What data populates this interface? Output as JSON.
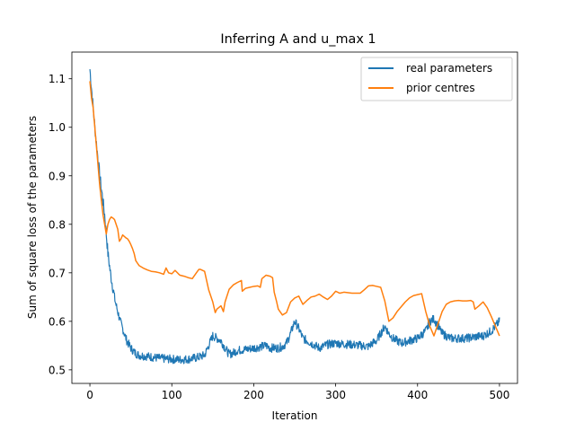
{
  "chart_data": {
    "type": "line",
    "title": "Inferring A and u_max 1",
    "xlabel": "Iteration",
    "ylabel": "Sum of square loss of the parameters",
    "xlim": [
      -22,
      522
    ],
    "ylim": [
      0.472,
      1.155
    ],
    "xticks": [
      0,
      100,
      200,
      300,
      400,
      500
    ],
    "yticks": [
      0.5,
      0.6,
      0.7,
      0.8,
      0.9,
      1.0,
      1.1
    ],
    "ytick_labels": [
      "0.5",
      "0.6",
      "0.7",
      "0.8",
      "0.9",
      "1.0",
      "1.1"
    ],
    "grid": false,
    "legend": "top-right",
    "series": [
      {
        "name": "real parameters",
        "color": "#1f77b4",
        "style": "noisy",
        "x": [
          0,
          3,
          6,
          9,
          12,
          15,
          18,
          20,
          22,
          25,
          28,
          31,
          34,
          37,
          40,
          45,
          50,
          55,
          60,
          70,
          80,
          90,
          100,
          110,
          120,
          130,
          140,
          145,
          150,
          155,
          160,
          165,
          170,
          175,
          180,
          190,
          200,
          210,
          215,
          220,
          225,
          230,
          235,
          240,
          245,
          250,
          255,
          260,
          270,
          280,
          290,
          300,
          310,
          320,
          330,
          340,
          345,
          350,
          355,
          360,
          365,
          370,
          380,
          390,
          400,
          410,
          415,
          420,
          425,
          430,
          440,
          450,
          460,
          470,
          480,
          490,
          500
        ],
        "values": [
          1.12,
          1.06,
          1.0,
          0.95,
          0.9,
          0.86,
          0.82,
          0.78,
          0.74,
          0.7,
          0.67,
          0.64,
          0.62,
          0.6,
          0.585,
          0.56,
          0.545,
          0.535,
          0.53,
          0.528,
          0.525,
          0.523,
          0.522,
          0.521,
          0.522,
          0.525,
          0.53,
          0.55,
          0.57,
          0.565,
          0.56,
          0.545,
          0.532,
          0.535,
          0.54,
          0.542,
          0.545,
          0.548,
          0.55,
          0.545,
          0.545,
          0.545,
          0.548,
          0.555,
          0.575,
          0.6,
          0.585,
          0.565,
          0.555,
          0.545,
          0.552,
          0.555,
          0.553,
          0.552,
          0.55,
          0.548,
          0.555,
          0.56,
          0.575,
          0.59,
          0.575,
          0.565,
          0.555,
          0.56,
          0.565,
          0.58,
          0.6,
          0.605,
          0.59,
          0.575,
          0.565,
          0.565,
          0.565,
          0.568,
          0.57,
          0.58,
          0.6
        ]
      },
      {
        "name": "prior centres",
        "color": "#ff7f0e",
        "style": "line",
        "x": [
          0,
          2,
          4,
          6,
          8,
          10,
          12,
          14,
          16,
          18,
          20,
          22,
          24,
          26,
          28,
          30,
          32,
          34,
          36,
          38,
          40,
          42,
          44,
          46,
          48,
          50,
          52,
          54,
          56,
          58,
          60,
          63,
          66,
          70,
          75,
          80,
          85,
          90,
          93,
          96,
          100,
          104,
          108,
          110,
          115,
          120,
          125,
          130,
          133,
          135,
          140,
          145,
          150,
          153,
          155,
          160,
          163,
          165,
          170,
          175,
          180,
          185,
          186,
          190,
          195,
          200,
          205,
          208,
          210,
          215,
          220,
          223,
          225,
          228,
          230,
          235,
          240,
          245,
          250,
          255,
          257,
          260,
          265,
          270,
          275,
          280,
          285,
          290,
          295,
          300,
          305,
          310,
          320,
          330,
          335,
          340,
          345,
          350,
          355,
          360,
          365,
          370,
          375,
          380,
          385,
          390,
          395,
          400,
          405,
          410,
          415,
          420,
          425,
          430,
          435,
          440,
          445,
          450,
          455,
          460,
          465,
          468,
          470,
          475,
          480,
          485,
          490,
          495,
          500
        ],
        "values": [
          1.095,
          1.06,
          1.04,
          1.0,
          0.96,
          0.92,
          0.88,
          0.85,
          0.82,
          0.8,
          0.78,
          0.8,
          0.81,
          0.815,
          0.813,
          0.81,
          0.8,
          0.79,
          0.765,
          0.77,
          0.778,
          0.775,
          0.772,
          0.77,
          0.765,
          0.758,
          0.75,
          0.74,
          0.725,
          0.72,
          0.715,
          0.712,
          0.709,
          0.706,
          0.703,
          0.702,
          0.7,
          0.697,
          0.71,
          0.7,
          0.698,
          0.705,
          0.698,
          0.695,
          0.693,
          0.69,
          0.688,
          0.7,
          0.707,
          0.707,
          0.703,
          0.665,
          0.64,
          0.618,
          0.625,
          0.632,
          0.62,
          0.64,
          0.666,
          0.675,
          0.68,
          0.684,
          0.662,
          0.668,
          0.67,
          0.672,
          0.673,
          0.67,
          0.688,
          0.695,
          0.693,
          0.69,
          0.66,
          0.64,
          0.625,
          0.613,
          0.618,
          0.64,
          0.648,
          0.652,
          0.645,
          0.635,
          0.643,
          0.65,
          0.652,
          0.656,
          0.65,
          0.645,
          0.652,
          0.662,
          0.658,
          0.66,
          0.658,
          0.658,
          0.665,
          0.673,
          0.674,
          0.672,
          0.67,
          0.642,
          0.6,
          0.607,
          0.62,
          0.63,
          0.64,
          0.648,
          0.653,
          0.655,
          0.657,
          0.62,
          0.59,
          0.57,
          0.595,
          0.62,
          0.635,
          0.64,
          0.642,
          0.643,
          0.642,
          0.642,
          0.643,
          0.64,
          0.625,
          0.632,
          0.64,
          0.628,
          0.61,
          0.59,
          0.57
        ]
      }
    ]
  }
}
